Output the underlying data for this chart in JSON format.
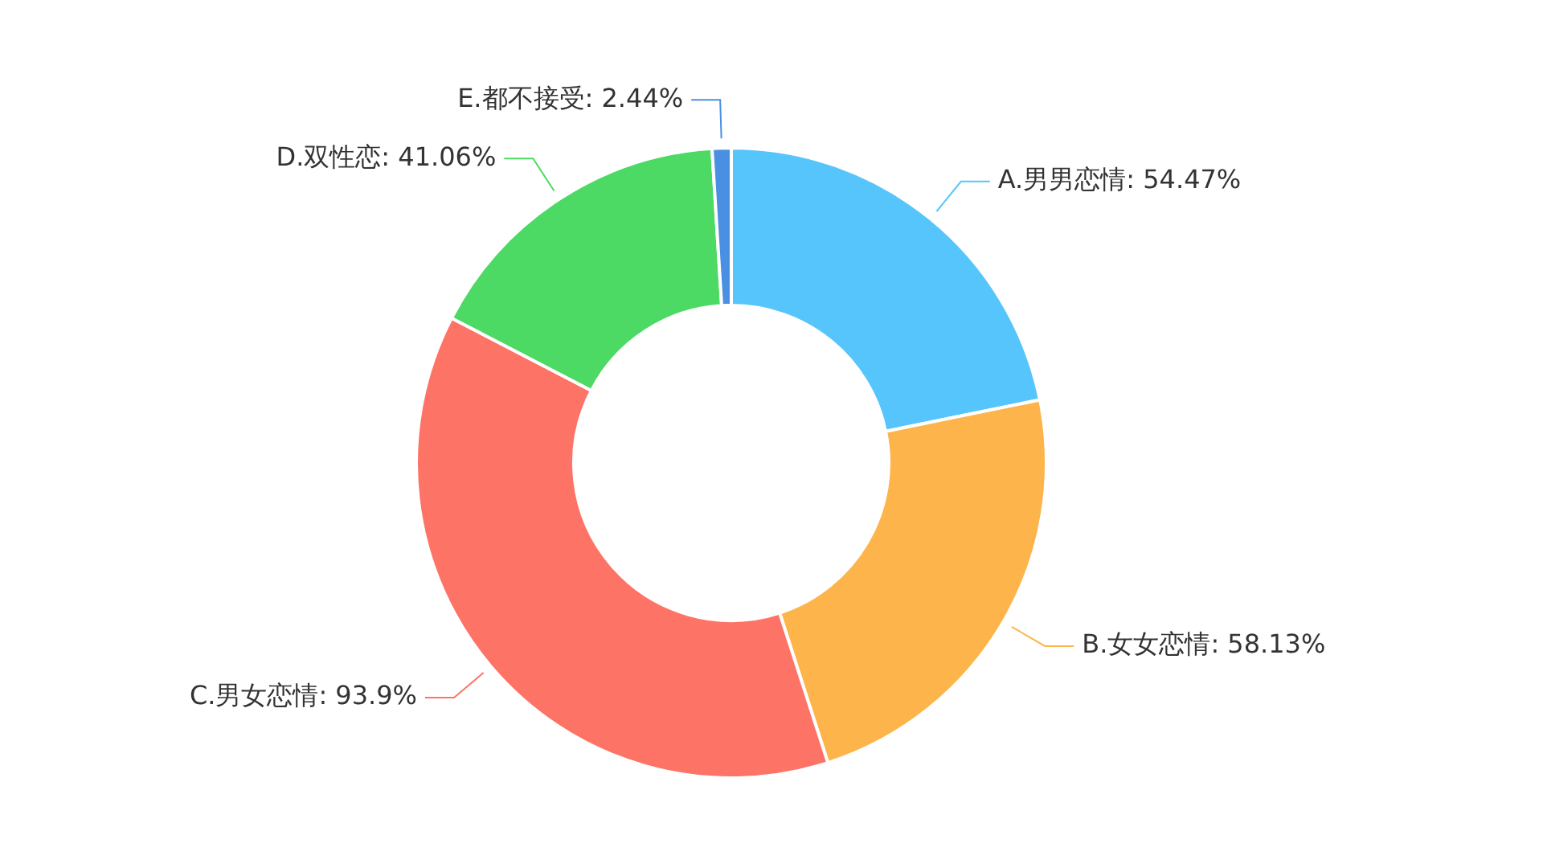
{
  "chart_data": {
    "type": "donut",
    "categories": [
      "A.男男恋情",
      "B.女女恋情",
      "C.男女恋情",
      "D.双性恋",
      "E.都不接受"
    ],
    "values": [
      54.47,
      58.13,
      93.9,
      41.06,
      2.44
    ],
    "value_labels": [
      "54.47%",
      "58.13%",
      "93.9%",
      "41.06%",
      "2.44%"
    ],
    "colors": [
      "#56c5fb",
      "#fdb44b",
      "#fd7366",
      "#4cd964",
      "#4a90e2"
    ],
    "legend": false
  }
}
